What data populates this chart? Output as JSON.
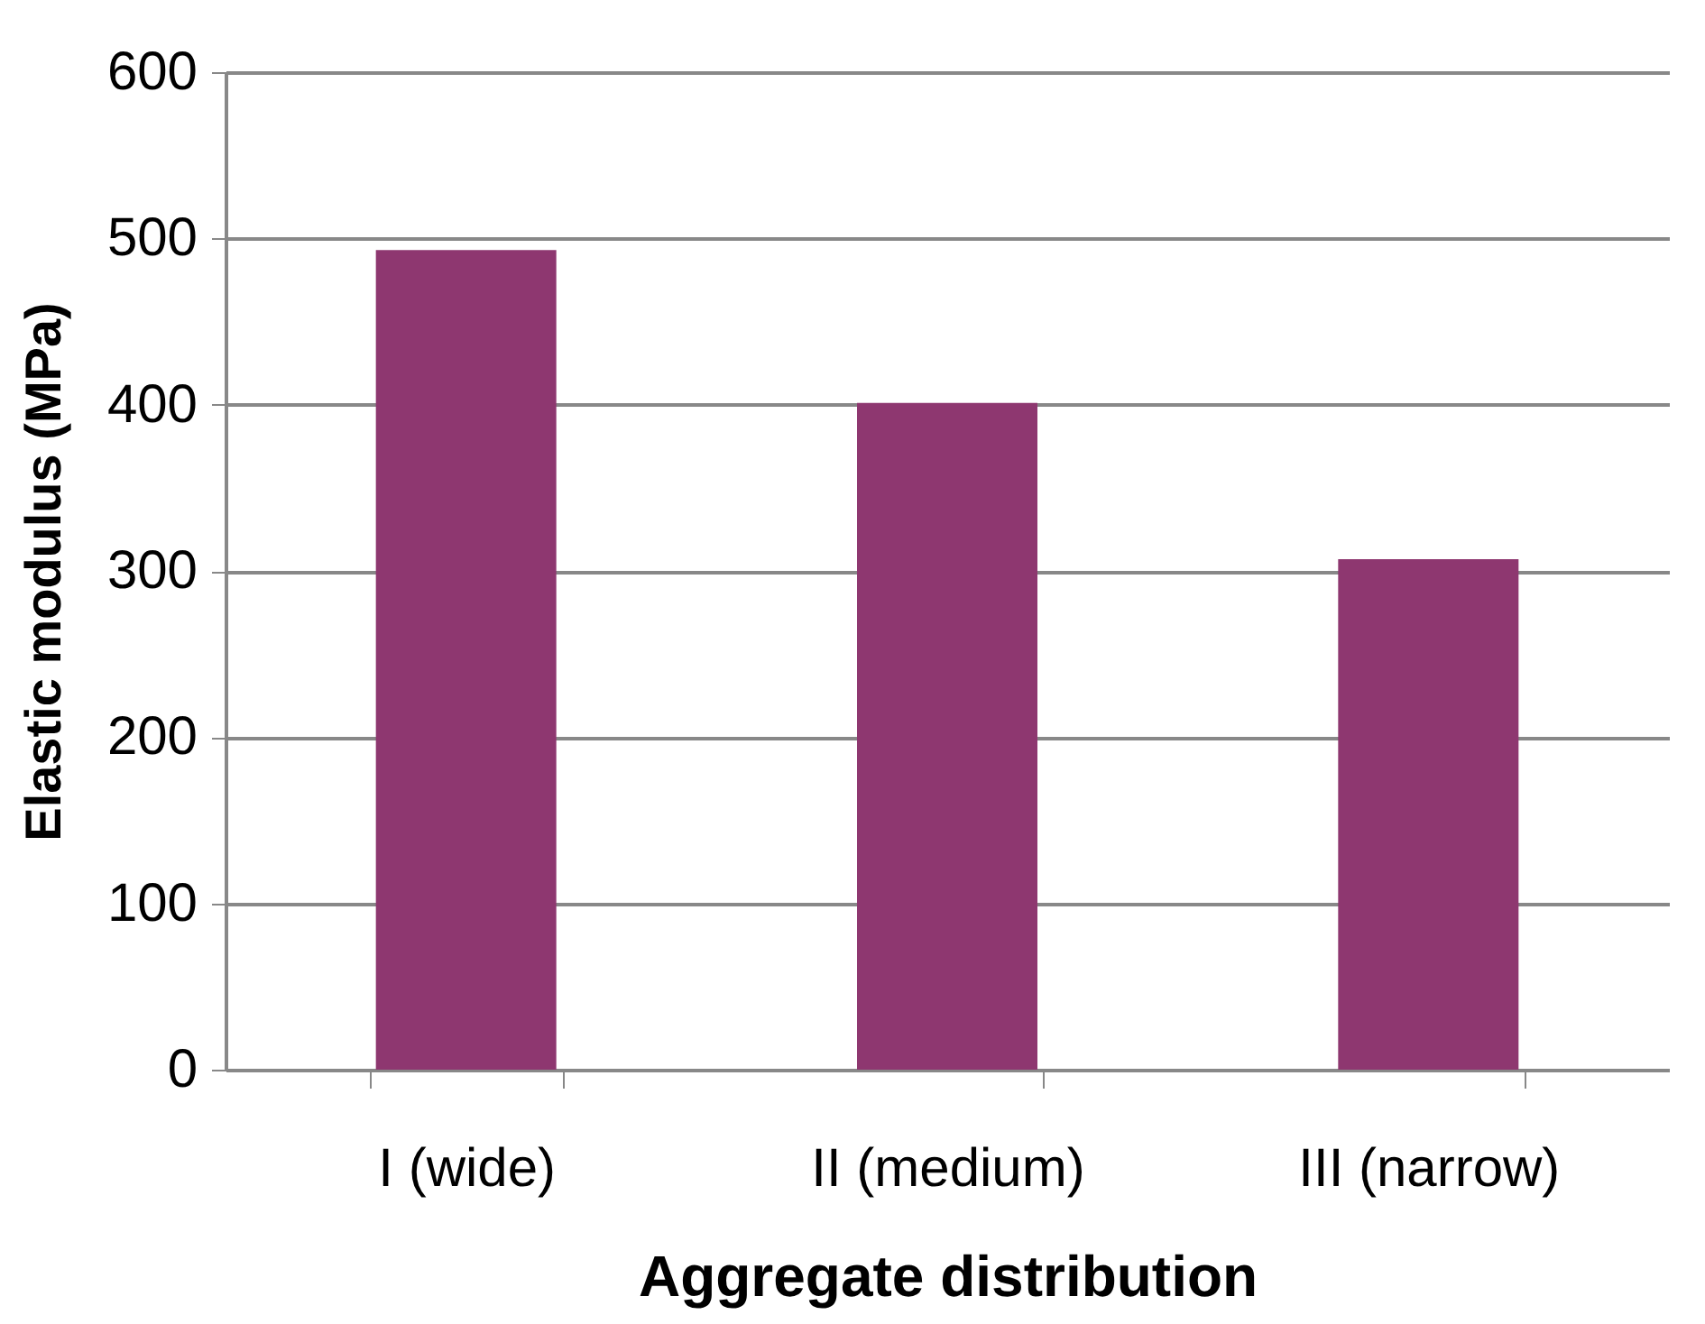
{
  "chart_data": {
    "type": "bar",
    "xlabel": "Aggregate distribution",
    "ylabel": "Elastic modulus (MPa)",
    "categories": [
      "I (wide)",
      "II (medium)",
      "III (narrow)"
    ],
    "values": [
      493,
      401,
      307
    ],
    "color": "#8e3770",
    "ylim": [
      0,
      600
    ],
    "yticks": [
      0,
      100,
      200,
      300,
      400,
      500,
      600
    ],
    "grid": "y"
  }
}
